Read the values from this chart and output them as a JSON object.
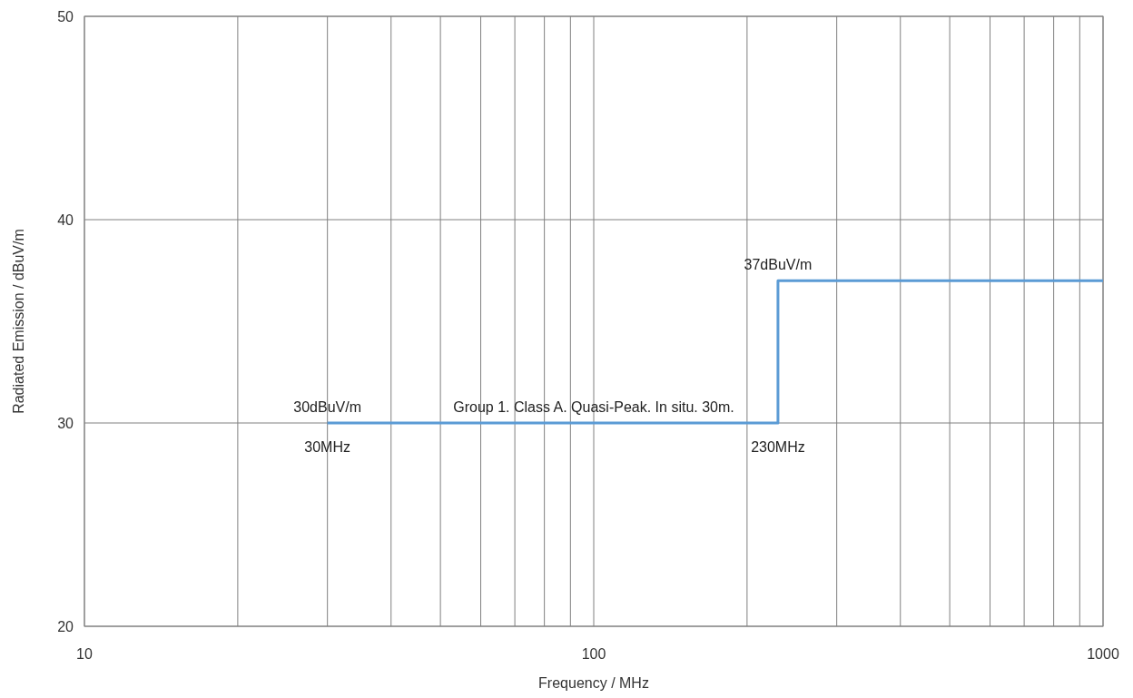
{
  "chart_data": {
    "type": "step",
    "xlabel": "Frequency / MHz",
    "ylabel": "Radiated Emission / dBuV/m",
    "log": "x",
    "xlim": [
      10,
      1000
    ],
    "ylim": [
      20,
      50
    ],
    "xticks": [
      10,
      {
        "value": 20,
        "label": null
      },
      {
        "value": 30,
        "label": null
      },
      {
        "value": 40,
        "label": null
      },
      {
        "value": 50,
        "label": null
      },
      {
        "value": 60,
        "label": null
      },
      {
        "value": 70,
        "label": null
      },
      {
        "value": 80,
        "label": null
      },
      {
        "value": 90,
        "label": null
      },
      100,
      {
        "value": 200,
        "label": null
      },
      {
        "value": 300,
        "label": null
      },
      {
        "value": 400,
        "label": null
      },
      {
        "value": 500,
        "label": null
      },
      {
        "value": 600,
        "label": null
      },
      {
        "value": 700,
        "label": null
      },
      {
        "value": 800,
        "label": null
      },
      {
        "value": 900,
        "label": null
      },
      1000
    ],
    "yticks": [
      20,
      30,
      40,
      50
    ],
    "grid": true,
    "line_style": "solid",
    "series": [
      {
        "color": "#5b9bd5",
        "x": [
          30,
          230,
          1000
        ],
        "values": [
          30,
          37,
          37
        ]
      }
    ],
    "annotations": [
      {
        "text": "30dBuV/m",
        "x": 30,
        "y": 30
      },
      {
        "text": "30MHz",
        "x": 30,
        "y": 30
      },
      {
        "text": "Group 1. Class A. Quasi-Peak. In situ. 30m.",
        "x": 100,
        "y": 30
      },
      {
        "text": "37dBuV/m",
        "x": 230,
        "y": 37
      },
      {
        "text": "230MHz",
        "x": 230,
        "y": 30
      }
    ]
  }
}
